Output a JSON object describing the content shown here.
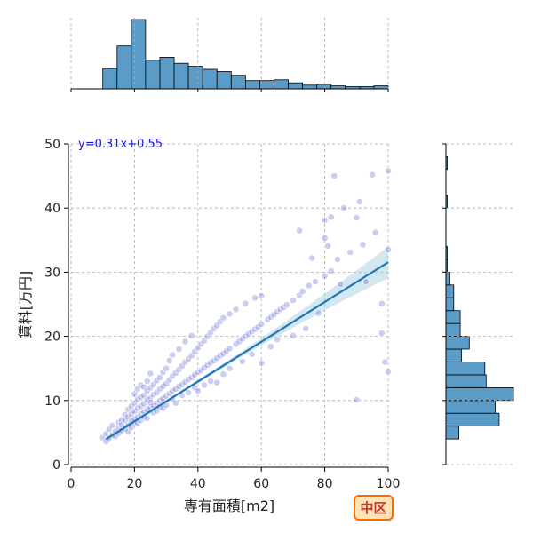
{
  "chart_data": {
    "type": "scatter",
    "xlabel": "専有面積[m2]",
    "ylabel": "賃料[万円]",
    "xlim": [
      0,
      100
    ],
    "ylim": [
      0,
      50
    ],
    "xticks": [
      0,
      20,
      40,
      60,
      80,
      100
    ],
    "yticks": [
      0,
      10,
      20,
      30,
      40,
      50
    ],
    "grid": true,
    "regression": {
      "slope": 0.31,
      "intercept": 0.55,
      "equation_label": "y=0.31x+0.55"
    },
    "badge": "中区",
    "colors": {
      "points": "#6a6fd8",
      "line": "#1f77b4",
      "hist": "#5b9bc8",
      "band": "#9ecae1",
      "badge_fill": "#ffe4b5",
      "badge_border": "#ff6a00",
      "badge_text": "#c0392b"
    },
    "hist_x": {
      "bin_edges": [
        10,
        14.5,
        19,
        23.5,
        28,
        32.5,
        37,
        41.5,
        46,
        50.5,
        55,
        59.5,
        64,
        68.5,
        73,
        77.5,
        82,
        86.5,
        91,
        95.5,
        100
      ],
      "counts": [
        27,
        57,
        92,
        38,
        42,
        34,
        30,
        26,
        23,
        18,
        11,
        11,
        12,
        8,
        5,
        6,
        4,
        3,
        3,
        4
      ]
    },
    "hist_y": {
      "bin_edges": [
        4,
        6,
        8,
        10,
        12,
        14,
        16,
        18,
        20,
        22,
        24,
        26,
        28,
        30,
        32,
        34,
        36,
        38,
        40,
        42,
        44,
        46,
        48
      ],
      "counts": [
        10,
        41,
        38,
        52,
        31,
        30,
        12,
        18,
        11,
        11,
        6,
        6,
        3,
        1,
        1,
        0,
        0,
        0,
        1,
        0,
        0,
        1,
        0
      ]
    },
    "points": [
      [
        10,
        4.2
      ],
      [
        11,
        3.6
      ],
      [
        11,
        4.8
      ],
      [
        12,
        4.1
      ],
      [
        12,
        5.5
      ],
      [
        13,
        4.6
      ],
      [
        13,
        6.1
      ],
      [
        14,
        5.2
      ],
      [
        14,
        4.4
      ],
      [
        15,
        5.8
      ],
      [
        15,
        6.6
      ],
      [
        15,
        4.9
      ],
      [
        16,
        5.3
      ],
      [
        16,
        7.0
      ],
      [
        16,
        6.2
      ],
      [
        17,
        5.6
      ],
      [
        17,
        6.9
      ],
      [
        17,
        7.8
      ],
      [
        18,
        6.1
      ],
      [
        18,
        7.4
      ],
      [
        18,
        8.6
      ],
      [
        18,
        5.2
      ],
      [
        19,
        6.8
      ],
      [
        19,
        7.9
      ],
      [
        19,
        9.1
      ],
      [
        19,
        5.8
      ],
      [
        20,
        7.1
      ],
      [
        20,
        8.3
      ],
      [
        20,
        9.6
      ],
      [
        20,
        6.3
      ],
      [
        20,
        11.0
      ],
      [
        21,
        7.4
      ],
      [
        21,
        8.8
      ],
      [
        21,
        10.2
      ],
      [
        21,
        6.5
      ],
      [
        21,
        11.8
      ],
      [
        22,
        7.9
      ],
      [
        22,
        9.1
      ],
      [
        22,
        10.5
      ],
      [
        22,
        12.4
      ],
      [
        22,
        6.9
      ],
      [
        23,
        8.2
      ],
      [
        23,
        9.5
      ],
      [
        23,
        10.8
      ],
      [
        23,
        12.1
      ],
      [
        23,
        7.4
      ],
      [
        24,
        8.6
      ],
      [
        24,
        10.1
      ],
      [
        24,
        11.5
      ],
      [
        24,
        7.2
      ],
      [
        24,
        13.0
      ],
      [
        25,
        8.9
      ],
      [
        25,
        10.4
      ],
      [
        25,
        12.0
      ],
      [
        25,
        9.7
      ],
      [
        25,
        14.2
      ],
      [
        26,
        9.2
      ],
      [
        26,
        10.9
      ],
      [
        26,
        12.5
      ],
      [
        26,
        8.1
      ],
      [
        27,
        9.6
      ],
      [
        27,
        11.2
      ],
      [
        27,
        13.1
      ],
      [
        27,
        8.4
      ],
      [
        28,
        10.0
      ],
      [
        28,
        11.8
      ],
      [
        28,
        13.6
      ],
      [
        28,
        9.0
      ],
      [
        29,
        10.3
      ],
      [
        29,
        12.2
      ],
      [
        29,
        14.4
      ],
      [
        29,
        8.8
      ],
      [
        30,
        10.7
      ],
      [
        30,
        12.6
      ],
      [
        30,
        15.0
      ],
      [
        30,
        9.3
      ],
      [
        31,
        11.1
      ],
      [
        31,
        13.2
      ],
      [
        31,
        16.2
      ],
      [
        32,
        11.5
      ],
      [
        32,
        13.8
      ],
      [
        32,
        17.1
      ],
      [
        32,
        10.2
      ],
      [
        33,
        11.8
      ],
      [
        33,
        14.3
      ],
      [
        33,
        9.6
      ],
      [
        34,
        12.2
      ],
      [
        34,
        14.8
      ],
      [
        34,
        18.0
      ],
      [
        35,
        12.5
      ],
      [
        35,
        15.4
      ],
      [
        35,
        10.8
      ],
      [
        36,
        12.9
      ],
      [
        36,
        16.0
      ],
      [
        36,
        19.2
      ],
      [
        37,
        13.3
      ],
      [
        37,
        16.5
      ],
      [
        37,
        11.2
      ],
      [
        38,
        13.6
      ],
      [
        38,
        17.0
      ],
      [
        38,
        20.1
      ],
      [
        39,
        14.0
      ],
      [
        39,
        17.6
      ],
      [
        39,
        12.0
      ],
      [
        40,
        14.4
      ],
      [
        40,
        18.2
      ],
      [
        40,
        11.5
      ],
      [
        41,
        14.7
      ],
      [
        41,
        18.8
      ],
      [
        42,
        15.1
      ],
      [
        42,
        19.3
      ],
      [
        42,
        12.4
      ],
      [
        43,
        15.5
      ],
      [
        43,
        20.0
      ],
      [
        44,
        15.9
      ],
      [
        44,
        20.6
      ],
      [
        44,
        13.0
      ],
      [
        45,
        16.2
      ],
      [
        45,
        21.2
      ],
      [
        46,
        16.6
      ],
      [
        46,
        21.7
      ],
      [
        46,
        12.8
      ],
      [
        47,
        17.0
      ],
      [
        47,
        22.3
      ],
      [
        48,
        17.3
      ],
      [
        48,
        22.9
      ],
      [
        48,
        14.1
      ],
      [
        49,
        17.7
      ],
      [
        50,
        18.1
      ],
      [
        50,
        23.5
      ],
      [
        50,
        15.0
      ],
      [
        52,
        18.8
      ],
      [
        52,
        24.2
      ],
      [
        53,
        19.2
      ],
      [
        54,
        19.6
      ],
      [
        54,
        16.1
      ],
      [
        55,
        20.0
      ],
      [
        55,
        25.1
      ],
      [
        56,
        20.4
      ],
      [
        57,
        20.7
      ],
      [
        57,
        17.2
      ],
      [
        58,
        21.1
      ],
      [
        58,
        26.0
      ],
      [
        59,
        21.5
      ],
      [
        60,
        21.9
      ],
      [
        60,
        26.3
      ],
      [
        60,
        15.8
      ],
      [
        62,
        22.6
      ],
      [
        63,
        23.0
      ],
      [
        63,
        18.4
      ],
      [
        64,
        23.4
      ],
      [
        65,
        23.8
      ],
      [
        65,
        19.5
      ],
      [
        66,
        24.2
      ],
      [
        67,
        24.5
      ],
      [
        68,
        24.9
      ],
      [
        70,
        25.6
      ],
      [
        70,
        20.1
      ],
      [
        72,
        36.5
      ],
      [
        72,
        26.4
      ],
      [
        73,
        27.0
      ],
      [
        74,
        21.2
      ],
      [
        75,
        27.9
      ],
      [
        76,
        32.2
      ],
      [
        77,
        28.5
      ],
      [
        78,
        23.6
      ],
      [
        80,
        29.4
      ],
      [
        80,
        35.3
      ],
      [
        80,
        38.1
      ],
      [
        81,
        34.1
      ],
      [
        82,
        38.6
      ],
      [
        82,
        30.2
      ],
      [
        83,
        45.0
      ],
      [
        84,
        32.0
      ],
      [
        85,
        28.1
      ],
      [
        86,
        40.0
      ],
      [
        88,
        33.1
      ],
      [
        90,
        38.5
      ],
      [
        90,
        10.1
      ],
      [
        91,
        41.0
      ],
      [
        92,
        34.3
      ],
      [
        93,
        28.5
      ],
      [
        95,
        45.2
      ],
      [
        96,
        36.2
      ],
      [
        98,
        20.5
      ],
      [
        98,
        25.1
      ],
      [
        99,
        16.0
      ],
      [
        100,
        45.8
      ],
      [
        100,
        33.5
      ],
      [
        100,
        14.5
      ]
    ]
  }
}
